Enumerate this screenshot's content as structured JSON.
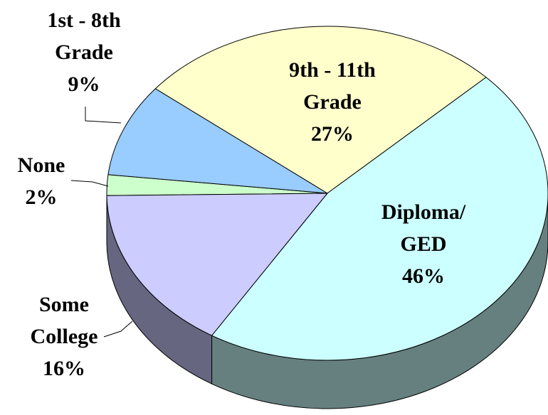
{
  "chart_data": {
    "type": "pie3d",
    "categories": [
      "None",
      "1st - 8th Grade",
      "9th - 11th Grade",
      "Diploma/ GED",
      "Some College"
    ],
    "values": [
      2,
      9,
      27,
      46,
      16
    ],
    "value_labels": [
      "2%",
      "9%",
      "27%",
      "46%",
      "16%"
    ],
    "colors": [
      "#ccffcc",
      "#99ccff",
      "#ffffcc",
      "#ccffff",
      "#ccccff"
    ]
  }
}
